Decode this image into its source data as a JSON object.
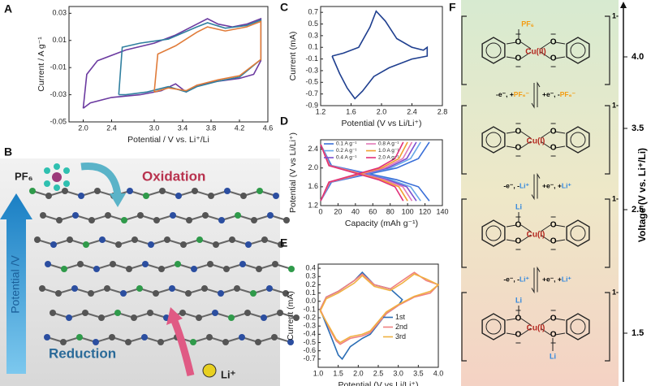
{
  "chart_data": [
    {
      "type": "line",
      "panel_label": "A",
      "xlabel": "Potential / V vs. Li⁺/Li",
      "ylabel": "Current / A g⁻¹",
      "xlim": [
        1.8,
        4.6
      ],
      "xticks": [
        {
          "value": 2,
          "label": "2.0"
        },
        2.4,
        {
          "value": 3,
          "label": "3.0"
        },
        3.4,
        3.8,
        4.2,
        4.6
      ],
      "ylim": [
        -0.05,
        0.035
      ],
      "yticks": [
        0.03,
        0.01,
        -0.01,
        -0.03,
        -0.05
      ],
      "series": [
        {
          "color": "#6b3aa0",
          "x": [
            2.0,
            2.05,
            2.2,
            2.6,
            3.0,
            3.3,
            3.6,
            3.75,
            3.9,
            4.1,
            4.3,
            4.5,
            4.5,
            4.4,
            4.2,
            3.9,
            3.6,
            3.45,
            3.3,
            3.1,
            2.8,
            2.4,
            2.1,
            2.0
          ],
          "y": [
            -0.04,
            -0.015,
            -0.005,
            0.003,
            0.008,
            0.014,
            0.022,
            0.026,
            0.022,
            0.02,
            0.022,
            0.026,
            -0.005,
            -0.015,
            -0.018,
            -0.02,
            -0.023,
            -0.028,
            -0.022,
            -0.027,
            -0.03,
            -0.032,
            -0.036,
            -0.04
          ]
        },
        {
          "color": "#2f7f9f",
          "x": [
            2.5,
            2.55,
            2.8,
            3.2,
            3.6,
            3.75,
            4.0,
            4.3,
            4.5,
            4.5,
            4.2,
            3.9,
            3.6,
            3.45,
            3.2,
            2.9,
            2.6,
            2.5
          ],
          "y": [
            -0.03,
            0.005,
            0.008,
            0.011,
            0.02,
            0.023,
            0.019,
            0.021,
            0.025,
            -0.004,
            -0.017,
            -0.02,
            -0.024,
            -0.028,
            -0.024,
            -0.028,
            -0.03,
            -0.03
          ]
        },
        {
          "color": "#e07b39",
          "x": [
            3.0,
            3.05,
            3.3,
            3.6,
            3.75,
            4.0,
            4.3,
            4.5,
            4.5,
            4.2,
            3.9,
            3.6,
            3.45,
            3.2,
            3.0
          ],
          "y": [
            -0.028,
            0.0,
            0.006,
            0.016,
            0.02,
            0.017,
            0.02,
            0.024,
            -0.004,
            -0.016,
            -0.019,
            -0.023,
            -0.027,
            -0.025,
            -0.028
          ]
        }
      ]
    },
    {
      "type": "line",
      "panel_label": "C",
      "xlabel": "Potential (V vs Li/Li⁺)",
      "ylabel": "Current (mA)",
      "xlim": [
        1.2,
        2.8
      ],
      "xticks": [
        1.2,
        1.6,
        {
          "value": 2,
          "label": "2.0"
        },
        2.4,
        2.8
      ],
      "ylim": [
        -0.9,
        0.8
      ],
      "yticks": [
        0.7,
        0.5,
        0.3,
        0.1,
        -0.1,
        -0.3,
        -0.5,
        -0.7,
        -0.9
      ],
      "series": [
        {
          "color": "#1f3f8f",
          "x": [
            1.35,
            1.5,
            1.7,
            1.85,
            1.93,
            2.05,
            2.2,
            2.4,
            2.55,
            2.6,
            2.6,
            2.4,
            2.1,
            1.9,
            1.75,
            1.65,
            1.55,
            1.45,
            1.35
          ],
          "y": [
            -0.05,
            0.0,
            0.1,
            0.45,
            0.72,
            0.55,
            0.25,
            0.1,
            0.05,
            0.1,
            -0.05,
            -0.1,
            -0.25,
            -0.4,
            -0.65,
            -0.78,
            -0.6,
            -0.35,
            -0.05
          ]
        }
      ]
    },
    {
      "type": "line",
      "panel_label": "D",
      "xlabel": "Capacity (mAh g⁻¹)",
      "ylabel": "Potential (V vs Li/Li⁺)",
      "xlim": [
        0,
        140
      ],
      "xticks": [
        0,
        20,
        40,
        60,
        80,
        100,
        120,
        140
      ],
      "ylim": [
        1.2,
        2.6
      ],
      "yticks": [
        1.2,
        1.6,
        {
          "value": 2,
          "label": "2.0"
        },
        2.4
      ],
      "legend": "upper-left",
      "series": [
        {
          "name": "0.1 A g⁻¹",
          "color": "#3a6fd8",
          "x": [
            0,
            12.5,
            50,
            87.5,
            112.5,
            125,
            null,
            125,
            112.5,
            87.5,
            50,
            12.5,
            0
          ],
          "y": [
            2.5,
            2.05,
            1.9,
            1.75,
            1.6,
            1.3,
            null,
            2.55,
            2.2,
            2.0,
            1.85,
            1.7,
            1.3
          ]
        },
        {
          "name": "0.2 A g⁻¹",
          "color": "#66a8e8",
          "x": [
            0,
            11.5,
            46,
            80.5,
            103.5,
            115,
            null,
            115,
            103.5,
            80.5,
            46,
            11.5,
            0
          ],
          "y": [
            2.5,
            2.05,
            1.9,
            1.75,
            1.6,
            1.3,
            null,
            2.55,
            2.2,
            2.0,
            1.85,
            1.7,
            1.3
          ]
        },
        {
          "name": "0.4 A g⁻¹",
          "color": "#7a4fcf",
          "x": [
            0,
            11,
            44,
            77,
            99,
            110,
            null,
            110,
            99,
            77,
            44,
            11,
            0
          ],
          "y": [
            2.5,
            2.05,
            1.9,
            1.75,
            1.6,
            1.3,
            null,
            2.55,
            2.2,
            2.0,
            1.85,
            1.7,
            1.3
          ]
        },
        {
          "name": "0.8 A g⁻¹",
          "color": "#e27ab8",
          "x": [
            0,
            10.5,
            42,
            73.5,
            94.5,
            105,
            null,
            105,
            94.5,
            73.5,
            42,
            10.5,
            0
          ],
          "y": [
            2.5,
            2.05,
            1.9,
            1.75,
            1.6,
            1.3,
            null,
            2.55,
            2.2,
            2.0,
            1.85,
            1.7,
            1.3
          ]
        },
        {
          "name": "1.0 A g⁻¹",
          "color": "#f0a030",
          "x": [
            0,
            10,
            40,
            70,
            90,
            100,
            null,
            100,
            90,
            70,
            40,
            10,
            0
          ],
          "y": [
            2.5,
            2.05,
            1.9,
            1.75,
            1.6,
            1.3,
            null,
            2.55,
            2.2,
            2.0,
            1.85,
            1.7,
            1.3
          ]
        },
        {
          "name": "2.0 A g⁻¹",
          "color": "#e0307a",
          "x": [
            0,
            9.5,
            38,
            66.5,
            85.5,
            95,
            null,
            95,
            85.5,
            66.5,
            38,
            9.5,
            0
          ],
          "y": [
            2.5,
            2.05,
            1.9,
            1.75,
            1.6,
            1.3,
            null,
            2.55,
            2.2,
            2.0,
            1.85,
            1.7,
            1.3
          ]
        }
      ]
    },
    {
      "type": "line",
      "panel_label": "E",
      "xlabel": "Potential (V vs Li/Li⁺)",
      "ylabel": "Current (mA)",
      "xlim": [
        1.0,
        4.0
      ],
      "xticks": [
        {
          "value": 1,
          "label": "1.0"
        },
        1.5,
        {
          "value": 2,
          "label": "2.0"
        },
        2.5,
        {
          "value": 3,
          "label": "3.0"
        },
        3.5,
        {
          "value": 4,
          "label": "4.0"
        }
      ],
      "ylim": [
        -0.8,
        0.45
      ],
      "yticks": [
        0.4,
        0.3,
        0.2,
        0.1,
        {
          "value": 0,
          "label": "0.0"
        },
        -0.1,
        -0.2,
        -0.3,
        -0.4,
        -0.5,
        -0.6,
        -0.7
      ],
      "legend": "right",
      "series": [
        {
          "name": "1st",
          "color": "#2a6db5",
          "x": [
            1.05,
            1.2,
            1.5,
            1.9,
            2.1,
            2.4,
            2.8,
            3.1,
            3.0,
            2.7,
            2.3,
            2.1,
            1.8,
            1.6,
            1.5,
            1.3,
            1.05
          ],
          "y": [
            -0.1,
            0.05,
            0.12,
            0.25,
            0.35,
            0.2,
            0.15,
            0.02,
            -0.05,
            -0.15,
            -0.4,
            -0.45,
            -0.55,
            -0.7,
            -0.65,
            -0.4,
            -0.1
          ]
        },
        {
          "name": "2nd",
          "color": "#f08080",
          "x": [
            1.05,
            1.2,
            1.5,
            1.9,
            2.1,
            2.4,
            2.8,
            3.1,
            3.4,
            3.7,
            4.0,
            3.8,
            3.4,
            3.0,
            2.7,
            2.3,
            2.1,
            1.8,
            1.55,
            1.45,
            1.3,
            1.05
          ],
          "y": [
            -0.1,
            0.05,
            0.12,
            0.25,
            0.33,
            0.2,
            0.15,
            0.25,
            0.35,
            0.25,
            0.2,
            0.1,
            0.05,
            -0.05,
            -0.15,
            -0.38,
            -0.42,
            -0.45,
            -0.52,
            -0.48,
            -0.35,
            -0.1
          ]
        },
        {
          "name": "3rd",
          "color": "#f0b040",
          "x": [
            1.05,
            1.2,
            1.5,
            1.9,
            2.1,
            2.4,
            2.8,
            3.1,
            3.4,
            3.7,
            4.0,
            3.8,
            3.4,
            3.0,
            2.7,
            2.3,
            2.1,
            1.8,
            1.55,
            1.45,
            1.3,
            1.05
          ],
          "y": [
            -0.12,
            0.03,
            0.1,
            0.22,
            0.31,
            0.18,
            0.13,
            0.22,
            0.33,
            0.27,
            0.2,
            0.12,
            0.06,
            -0.04,
            -0.13,
            -0.36,
            -0.4,
            -0.43,
            -0.5,
            -0.46,
            -0.33,
            -0.12
          ]
        }
      ]
    }
  ],
  "panel_b": {
    "label": "B",
    "ion_top": "PF₆",
    "oxidation": "Oxidation",
    "potential": "Potential /V",
    "reduction": "Reduction",
    "ion_bottom": "Li⁺"
  },
  "panel_f": {
    "label": "F",
    "axis_label": "Voltage (V vs. Li⁺/Li)",
    "atom": "O",
    "charge": "1-",
    "levels": [
      "4.0",
      "3.5",
      "2.5",
      "1.5"
    ],
    "states": [
      {
        "metal": "Cu(II)",
        "top": "PF₆",
        "bottom": null
      },
      {
        "metal": "Cu(I)",
        "top": null,
        "bottom": null
      },
      {
        "metal": "Cu(I)",
        "top": "Li",
        "bottom": null
      },
      {
        "metal": "Cu(I)",
        "top": "Li",
        "bottom": "Li"
      }
    ],
    "steps": [
      {
        "fwd": "-e⁻, +",
        "fwd_ion": "PF₆⁻",
        "rev": "+e⁻, -",
        "rev_ion": "PF₆⁻",
        "ion_color": "#f39c12"
      },
      {
        "fwd": "-e⁻, -",
        "fwd_ion": "Li⁺",
        "rev": "+e⁻, +",
        "rev_ion": "Li⁺",
        "ion_color": "#2e86de"
      },
      {
        "fwd": "-e⁻, -",
        "fwd_ion": "Li⁺",
        "rev": "+e⁻, +",
        "rev_ion": "Li⁺",
        "ion_color": "#2e86de"
      }
    ]
  }
}
